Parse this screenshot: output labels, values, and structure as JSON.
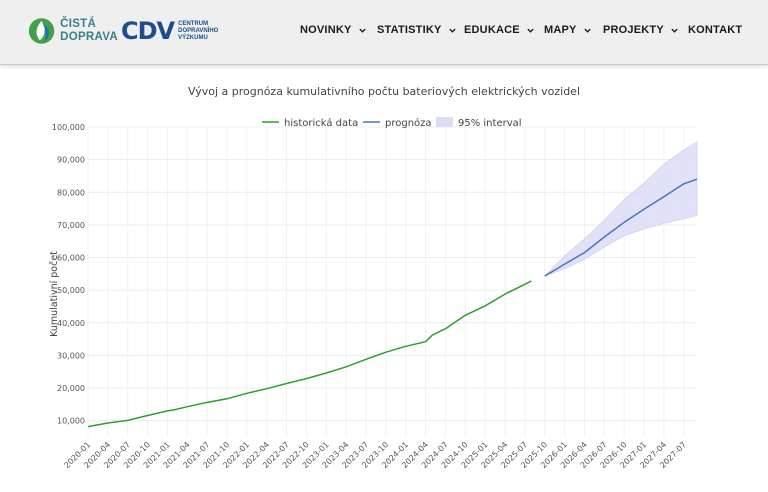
{
  "header": {
    "logo_primary": {
      "line1": "ČISTÁ",
      "line2": "DOPRAVA",
      "icon": "leaf-drop-icon"
    },
    "logo_secondary": {
      "mark": "CDV",
      "line1": "CENTRUM",
      "line2": "DOPRAVNÍHO",
      "line3": "VÝZKUMU"
    },
    "nav": [
      {
        "label": "NOVINKY",
        "has_dropdown": true
      },
      {
        "label": "STATISTIKY",
        "has_dropdown": true
      },
      {
        "label": "EDUKACE",
        "has_dropdown": true
      },
      {
        "label": "MAPY",
        "has_dropdown": true
      },
      {
        "label": "PROJEKTY",
        "has_dropdown": true
      },
      {
        "label": "KONTAKT",
        "has_dropdown": false
      }
    ]
  },
  "chart_data": {
    "type": "line",
    "title": "Vývoj a prognóza kumulativního počtu bateriových elektrických vozidel",
    "ylabel": "Kumulativní počet",
    "xlabel": "",
    "ylim": [
      5000,
      100000
    ],
    "ytick_labels": [
      "10,000",
      "20,000",
      "30,000",
      "40,000",
      "50,000",
      "60,000",
      "70,000",
      "80,000",
      "90,000",
      "100,000"
    ],
    "ytick_values": [
      10000,
      20000,
      30000,
      40000,
      50000,
      60000,
      70000,
      80000,
      90000,
      100000
    ],
    "xtick_labels": [
      "2020-01",
      "2020-04",
      "2020-07",
      "2020-10",
      "2021-01",
      "2021-04",
      "2021-07",
      "2021-10",
      "2022-01",
      "2022-04",
      "2022-07",
      "2022-10",
      "2023-01",
      "2023-04",
      "2023-07",
      "2023-10",
      "2024-01",
      "2024-04",
      "2024-07",
      "2024-10",
      "2025-01",
      "2025-04",
      "2025-07",
      "2025-10",
      "2026-01",
      "2026-04",
      "2026-07",
      "2026-10",
      "2027-01",
      "2027-04",
      "2027-07"
    ],
    "grid": true,
    "legend_position": "top-center",
    "series": [
      {
        "name": "historická data",
        "color": "#2ca02c",
        "x": [
          "2020-01",
          "2020-04",
          "2020-07",
          "2020-10",
          "2021-01",
          "2021-02",
          "2021-04",
          "2021-07",
          "2021-10",
          "2022-01",
          "2022-04",
          "2022-07",
          "2022-10",
          "2023-01",
          "2023-04",
          "2023-07",
          "2023-10",
          "2024-01",
          "2024-04",
          "2024-05",
          "2024-07",
          "2024-10",
          "2025-01",
          "2025-04",
          "2025-07",
          "2025-08"
        ],
        "values": [
          8200,
          9300,
          10100,
          11600,
          13000,
          13300,
          14300,
          15600,
          16700,
          18400,
          19800,
          21400,
          22900,
          24600,
          26500,
          28800,
          31000,
          32800,
          34200,
          36200,
          38200,
          42300,
          45200,
          48800,
          51800,
          52800
        ]
      },
      {
        "name": "prognóza",
        "color": "#4477bb",
        "x": [
          "2025-10",
          "2026-01",
          "2026-04",
          "2026-07",
          "2026-10",
          "2027-01",
          "2027-04",
          "2027-07",
          "2027-09"
        ],
        "values": [
          54300,
          58000,
          61500,
          66300,
          70800,
          74800,
          78600,
          82600,
          84000
        ]
      },
      {
        "name": "95% interval",
        "color": "#dcdcf7",
        "x": [
          "2025-10",
          "2026-01",
          "2026-04",
          "2026-07",
          "2026-10",
          "2027-01",
          "2027-04",
          "2027-07",
          "2027-09"
        ],
        "upper": [
          54300,
          60500,
          65700,
          71400,
          77800,
          82800,
          88600,
          93000,
          95400
        ],
        "lower": [
          54300,
          56500,
          59500,
          63200,
          66700,
          68700,
          70500,
          71900,
          72900
        ]
      }
    ]
  }
}
